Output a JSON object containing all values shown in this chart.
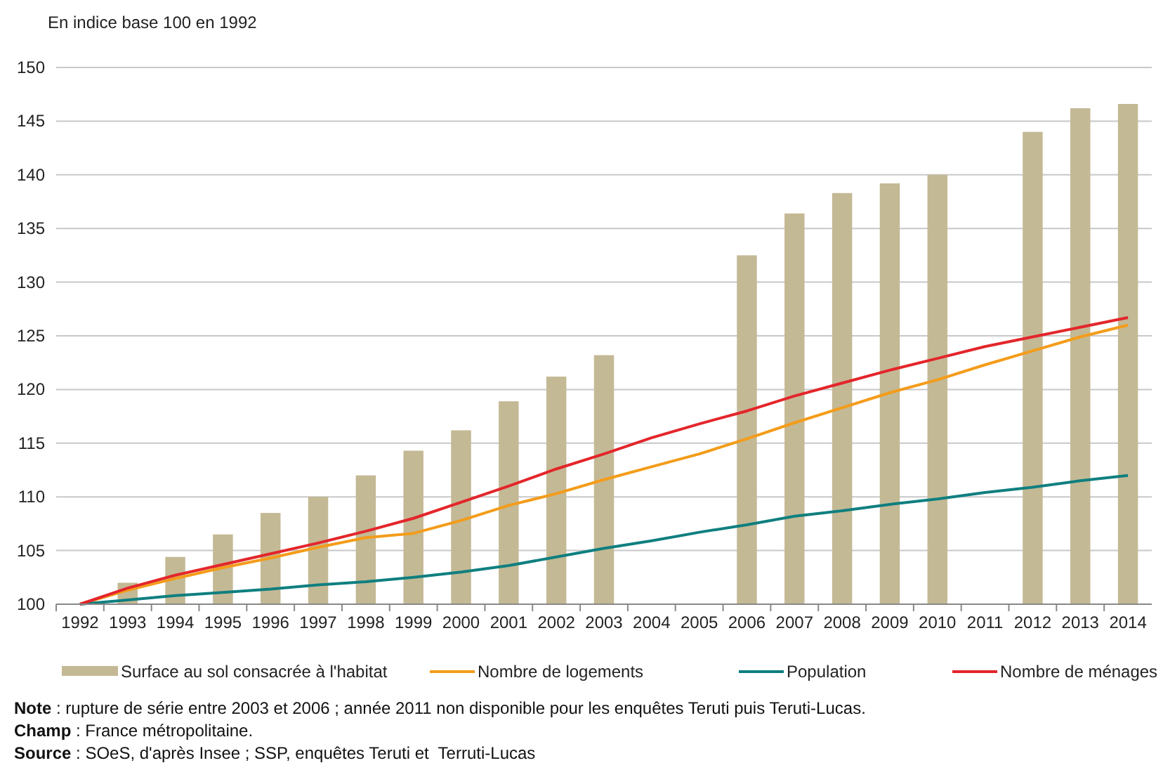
{
  "chart_data": {
    "type": "bar",
    "ylabel": "En indice base 100 en 1992",
    "categories": [
      "1992",
      "1993",
      "1994",
      "1995",
      "1996",
      "1997",
      "1998",
      "1999",
      "2000",
      "2001",
      "2002",
      "2003",
      "2004",
      "2005",
      "2006",
      "2007",
      "2008",
      "2009",
      "2010",
      "2011",
      "2012",
      "2013",
      "2014"
    ],
    "series": [
      {
        "name": "Surface au sol consacrée à l'habitat",
        "color": "#c4b995",
        "values": [
          null,
          102,
          104.4,
          106.5,
          108.5,
          110,
          112,
          114.3,
          116.2,
          118.9,
          121.2,
          123.2,
          null,
          null,
          132.5,
          136.4,
          138.3,
          139.2,
          140,
          null,
          144,
          146.2,
          146.6
        ]
      },
      {
        "name": "Nombre de logements",
        "type": "line",
        "color": "#f39c1a",
        "values": [
          100,
          101.3,
          102.4,
          103.4,
          104.3,
          105.3,
          106.2,
          106.6,
          107.8,
          109.2,
          110.3,
          111.6,
          112.8,
          114,
          115.4,
          116.9,
          118.3,
          119.7,
          120.9,
          122.3,
          123.6,
          124.9,
          126
        ]
      },
      {
        "name": "Population",
        "type": "line",
        "color": "#0f7f7f",
        "values": [
          100,
          100.4,
          100.8,
          101.1,
          101.4,
          101.8,
          102.1,
          102.5,
          103,
          103.6,
          104.4,
          105.2,
          105.9,
          106.7,
          107.4,
          108.2,
          108.7,
          109.3,
          109.8,
          110.4,
          110.9,
          111.5,
          112
        ]
      },
      {
        "name": "Nombre de ménages",
        "type": "line",
        "color": "#e3262b",
        "values": [
          100,
          101.5,
          102.7,
          103.7,
          104.7,
          105.7,
          106.8,
          108,
          109.5,
          111,
          112.6,
          114,
          115.5,
          116.8,
          118,
          119.4,
          120.6,
          121.8,
          122.9,
          124,
          124.9,
          125.8,
          126.7
        ]
      }
    ],
    "ylim": [
      100,
      150
    ],
    "yticks": [
      100,
      105,
      110,
      115,
      120,
      125,
      130,
      135,
      140,
      145,
      150
    ],
    "grid": "y",
    "legend": "bottom",
    "marker": "none",
    "line_style": "solid",
    "annotations": [
      "Note : rupture de série entre 2003 et 2006 ; année 2011 non disponible pour les enquêtes Teruti puis Teruti-Lucas.",
      "Champ : France métropolitaine.",
      "Source : SOeS, d'après Insee ; SSP, enquêtes Teruti et  Terruti-Lucas"
    ]
  }
}
